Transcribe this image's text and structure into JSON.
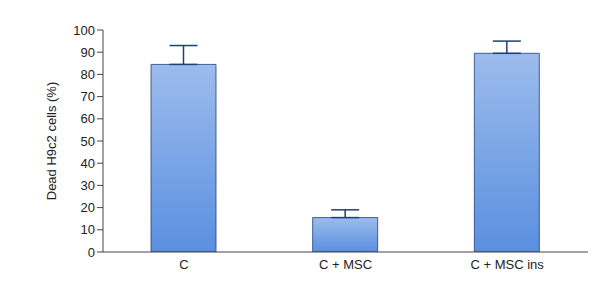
{
  "chart_data": {
    "type": "bar",
    "y_label": "Dead H9c2 cells (%)",
    "categories": [
      "C",
      "C + MSC",
      "C + MSC ins"
    ],
    "values": [
      84.5,
      15.5,
      89.5
    ],
    "errors": [
      8.5,
      3.5,
      5.5
    ],
    "color": "#5a8fe0",
    "ylim": [
      0,
      100
    ],
    "yticks": [
      0,
      10,
      20,
      30,
      40,
      50,
      60,
      70,
      80,
      90,
      100
    ],
    "grid": false
  }
}
